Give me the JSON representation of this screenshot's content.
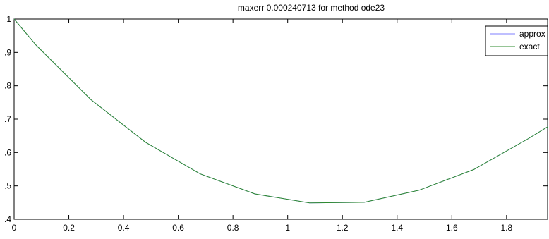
{
  "chart_data": {
    "type": "line",
    "title": "maxerr 0.000240713  for method ode23",
    "xlabel": "",
    "ylabel": "",
    "xlim": [
      0,
      1.95
    ],
    "ylim": [
      0.4,
      1.0
    ],
    "x_ticks": [
      0,
      0.2,
      0.4,
      0.6,
      0.8,
      1,
      1.2,
      1.4,
      1.6,
      1.8
    ],
    "x_tick_labels": [
      "0",
      "0.2",
      "0.4",
      "0.6",
      "0.8",
      "1",
      "1.2",
      "1.4",
      "1.6",
      "1.8"
    ],
    "y_ticks": [
      0.4,
      0.5,
      0.6,
      0.7,
      0.8,
      0.9,
      1.0
    ],
    "y_tick_labels": [
      ".4",
      ".5",
      ".6",
      ".7",
      ".8",
      ".9",
      "1"
    ],
    "grid": false,
    "legend_position": "top-right",
    "series": [
      {
        "name": "approx",
        "color": "#7f7fff",
        "x": [
          0,
          0.08,
          0.28,
          0.48,
          0.68,
          0.88,
          1.08,
          1.28,
          1.48,
          1.68,
          1.88,
          1.95
        ],
        "y": [
          1.0,
          0.922,
          0.759,
          0.631,
          0.536,
          0.476,
          0.449,
          0.451,
          0.487,
          0.549,
          0.642,
          0.677
        ]
      },
      {
        "name": "exact",
        "color": "#2e8b2e",
        "x": [
          0,
          0.08,
          0.28,
          0.48,
          0.68,
          0.88,
          1.08,
          1.28,
          1.48,
          1.68,
          1.88,
          1.95
        ],
        "y": [
          1.0,
          0.922,
          0.759,
          0.631,
          0.536,
          0.476,
          0.449,
          0.451,
          0.487,
          0.549,
          0.642,
          0.677
        ]
      }
    ]
  }
}
